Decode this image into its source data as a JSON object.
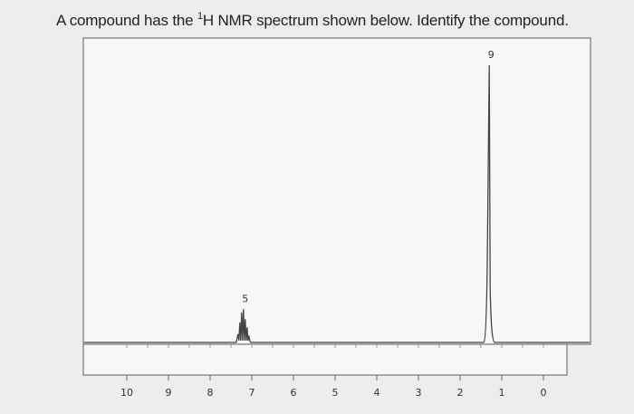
{
  "question": {
    "prefix": "A compound has the ",
    "superscript": "1",
    "suffix": "H NMR spectrum shown below. Identify the compound."
  },
  "colors": {
    "background": "#ecedef",
    "plot_bg": "#f7f7f8",
    "line": "#444444",
    "frame": "#777777"
  },
  "chart_data": {
    "type": "line",
    "title": "",
    "xlabel": "",
    "ylabel": "",
    "xlim": [
      10.5,
      -0.2
    ],
    "x_reversed": true,
    "grid": false,
    "ticks": [
      10,
      9,
      8,
      7,
      6,
      5,
      4,
      3,
      2,
      1,
      0
    ],
    "tick_labels": [
      "10",
      "9",
      "8",
      "7",
      "6",
      "5",
      "4",
      "3",
      "2",
      "1",
      "0"
    ],
    "peaks": [
      {
        "shift": 7.2,
        "integration": "5",
        "relative_height": 0.12,
        "multiplet": true
      },
      {
        "shift": 1.3,
        "integration": "9",
        "relative_height": 1.0,
        "multiplet": false
      }
    ]
  }
}
